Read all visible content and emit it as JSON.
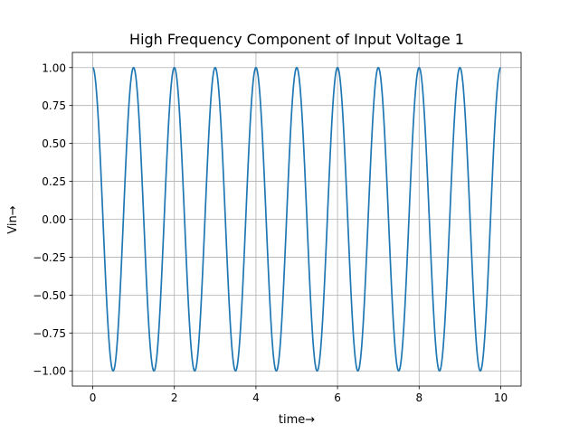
{
  "chart_data": {
    "type": "line",
    "title": "High Frequency Component of Input Voltage 1",
    "xlabel": "time→",
    "ylabel": "Vin→",
    "xlim": [
      -0.5,
      10.5
    ],
    "ylim": [
      -1.1,
      1.1
    ],
    "xticks": [
      0,
      2,
      4,
      6,
      8,
      10
    ],
    "xtick_labels": [
      "0",
      "2",
      "4",
      "6",
      "8",
      "10"
    ],
    "yticks": [
      -1.0,
      -0.75,
      -0.5,
      -0.25,
      0.0,
      0.25,
      0.5,
      0.75,
      1.0
    ],
    "ytick_labels": [
      "−1.00",
      "−0.75",
      "−0.50",
      "−0.25",
      "0.00",
      "0.25",
      "0.50",
      "0.75",
      "1.00"
    ],
    "grid": true,
    "legend": "none",
    "series": [
      {
        "function": "cos(2*pi*t)",
        "frequency": 1,
        "amplitude": 1,
        "x_range": [
          0,
          10
        ],
        "color": "#1f77b4"
      }
    ]
  }
}
